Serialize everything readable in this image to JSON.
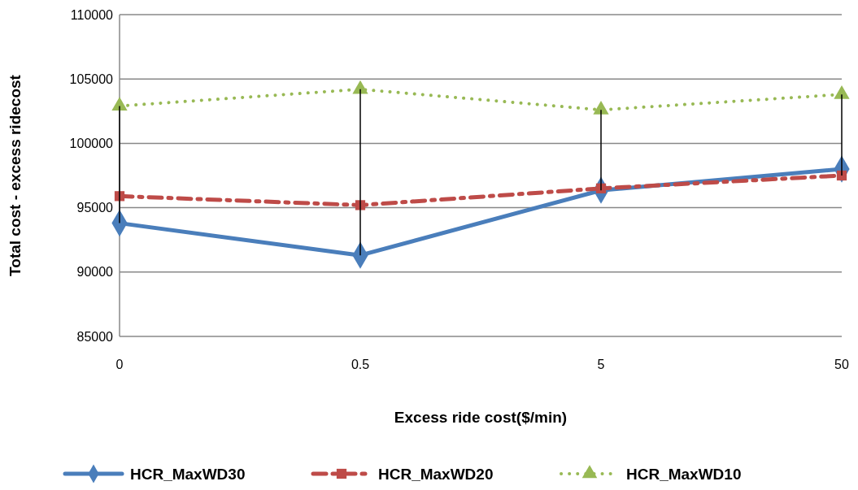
{
  "chart_data": {
    "type": "line",
    "xlabel": "Excess ride cost($/min)",
    "ylabel": "Total cost  - excess ridecost",
    "categories": [
      "0",
      "0.5",
      "5",
      "50"
    ],
    "series": [
      {
        "name": "HCR_MaxWD30",
        "color": "#4a7ebb",
        "marker": "diamond",
        "line_style": "solid",
        "values": [
          93800,
          91300,
          96350,
          98000
        ]
      },
      {
        "name": "HCR_MaxWD20",
        "color": "#be4b48",
        "marker": "square",
        "line_style": "dashed",
        "values": [
          95900,
          95200,
          96500,
          97500
        ]
      },
      {
        "name": "HCR_MaxWD10",
        "color": "#98b954",
        "marker": "triangle",
        "line_style": "dotted",
        "values": [
          102900,
          104200,
          102600,
          103800
        ]
      }
    ],
    "ylim": [
      85000,
      110000
    ],
    "yticks": [
      85000,
      90000,
      95000,
      100000,
      105000,
      110000
    ],
    "grid": "y",
    "legend": "bottom"
  }
}
